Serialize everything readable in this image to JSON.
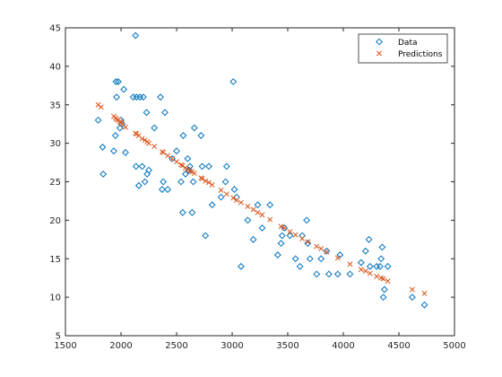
{
  "chart_data": {
    "type": "scatter",
    "xlim": [
      1500,
      5000
    ],
    "ylim": [
      5,
      45
    ],
    "xticks": [
      1500,
      2000,
      2500,
      3000,
      3500,
      4000,
      4500,
      5000
    ],
    "yticks": [
      5,
      10,
      15,
      20,
      25,
      30,
      35,
      40,
      45
    ],
    "grid": false,
    "legend_position": "top-right",
    "series": [
      {
        "name": "Data",
        "marker": "diamond",
        "color": "#0072BD",
        "points": [
          [
            1795,
            33
          ],
          [
            1835,
            29.5
          ],
          [
            1840,
            26
          ],
          [
            1935,
            29
          ],
          [
            1950,
            31
          ],
          [
            1955,
            38
          ],
          [
            1960,
            36
          ],
          [
            1975,
            38
          ],
          [
            1990,
            32
          ],
          [
            2000,
            33
          ],
          [
            2010,
            32.5
          ],
          [
            2025,
            37
          ],
          [
            2040,
            28.8
          ],
          [
            2110,
            36
          ],
          [
            2130,
            44
          ],
          [
            2135,
            27
          ],
          [
            2140,
            36
          ],
          [
            2160,
            24.5
          ],
          [
            2170,
            36
          ],
          [
            2190,
            27
          ],
          [
            2200,
            36
          ],
          [
            2215,
            25
          ],
          [
            2230,
            34
          ],
          [
            2235,
            26
          ],
          [
            2250,
            26.5
          ],
          [
            2300,
            32
          ],
          [
            2355,
            36
          ],
          [
            2370,
            24
          ],
          [
            2380,
            25
          ],
          [
            2395,
            34
          ],
          [
            2420,
            24
          ],
          [
            2460,
            28
          ],
          [
            2500,
            29
          ],
          [
            2540,
            25
          ],
          [
            2555,
            21
          ],
          [
            2560,
            31
          ],
          [
            2580,
            26
          ],
          [
            2600,
            28
          ],
          [
            2610,
            26.5
          ],
          [
            2620,
            27
          ],
          [
            2640,
            21
          ],
          [
            2650,
            25
          ],
          [
            2660,
            32
          ],
          [
            2720,
            31
          ],
          [
            2730,
            27
          ],
          [
            2760,
            18
          ],
          [
            2790,
            27
          ],
          [
            2820,
            22
          ],
          [
            2900,
            23
          ],
          [
            2940,
            25
          ],
          [
            2950,
            27
          ],
          [
            3010,
            38
          ],
          [
            3020,
            24
          ],
          [
            3040,
            23
          ],
          [
            3080,
            14
          ],
          [
            3140,
            20
          ],
          [
            3190,
            17.5
          ],
          [
            3230,
            22
          ],
          [
            3270,
            19
          ],
          [
            3340,
            22
          ],
          [
            3410,
            15.5
          ],
          [
            3440,
            17
          ],
          [
            3450,
            18
          ],
          [
            3470,
            19
          ],
          [
            3520,
            18
          ],
          [
            3570,
            15
          ],
          [
            3610,
            14
          ],
          [
            3630,
            18
          ],
          [
            3670,
            20
          ],
          [
            3680,
            17
          ],
          [
            3700,
            15
          ],
          [
            3760,
            13
          ],
          [
            3800,
            15
          ],
          [
            3850,
            16
          ],
          [
            3870,
            13
          ],
          [
            3950,
            13
          ],
          [
            3970,
            15.5
          ],
          [
            4060,
            13
          ],
          [
            4160,
            14.5
          ],
          [
            4200,
            16
          ],
          [
            4230,
            17.5
          ],
          [
            4240,
            14
          ],
          [
            4300,
            14
          ],
          [
            4330,
            14
          ],
          [
            4340,
            15
          ],
          [
            4350,
            16.5
          ],
          [
            4360,
            10
          ],
          [
            4370,
            11
          ],
          [
            4400,
            14
          ],
          [
            4620,
            10
          ],
          [
            4730,
            9
          ]
        ]
      },
      {
        "name": "Predictions",
        "marker": "x",
        "color": "#D95319",
        "points": [
          [
            1795,
            35
          ],
          [
            1820,
            34.7
          ],
          [
            1935,
            33.5
          ],
          [
            1950,
            33.3
          ],
          [
            1960,
            33.1
          ],
          [
            1975,
            33
          ],
          [
            1990,
            32.8
          ],
          [
            2000,
            32.7
          ],
          [
            2010,
            32.5
          ],
          [
            2040,
            32.1
          ],
          [
            2130,
            31.3
          ],
          [
            2140,
            31.2
          ],
          [
            2160,
            31
          ],
          [
            2190,
            30.6
          ],
          [
            2215,
            30.4
          ],
          [
            2235,
            30.2
          ],
          [
            2250,
            30
          ],
          [
            2300,
            29.6
          ],
          [
            2370,
            28.9
          ],
          [
            2380,
            28.8
          ],
          [
            2420,
            28.4
          ],
          [
            2460,
            28
          ],
          [
            2500,
            27.6
          ],
          [
            2540,
            27.2
          ],
          [
            2555,
            27.1
          ],
          [
            2580,
            26.8
          ],
          [
            2600,
            26.6
          ],
          [
            2620,
            26.4
          ],
          [
            2640,
            26.3
          ],
          [
            2660,
            26.1
          ],
          [
            2720,
            25.5
          ],
          [
            2730,
            25.4
          ],
          [
            2760,
            25.1
          ],
          [
            2790,
            24.9
          ],
          [
            2820,
            24.6
          ],
          [
            2900,
            23.9
          ],
          [
            2950,
            23.4
          ],
          [
            3010,
            22.9
          ],
          [
            3040,
            22.6
          ],
          [
            3080,
            22.3
          ],
          [
            3140,
            21.8
          ],
          [
            3190,
            21.4
          ],
          [
            3230,
            21
          ],
          [
            3270,
            20.7
          ],
          [
            3340,
            20.1
          ],
          [
            3440,
            19.2
          ],
          [
            3470,
            19
          ],
          [
            3520,
            18.5
          ],
          [
            3570,
            18.1
          ],
          [
            3630,
            17.6
          ],
          [
            3680,
            17.2
          ],
          [
            3760,
            16.6
          ],
          [
            3800,
            16.3
          ],
          [
            3850,
            15.9
          ],
          [
            3950,
            15.1
          ],
          [
            4060,
            14.3
          ],
          [
            4160,
            13.6
          ],
          [
            4200,
            13.4
          ],
          [
            4240,
            13.1
          ],
          [
            4300,
            12.7
          ],
          [
            4340,
            12.5
          ],
          [
            4360,
            12.4
          ],
          [
            4400,
            12.1
          ],
          [
            4620,
            11
          ],
          [
            4730,
            10.5
          ]
        ]
      }
    ]
  }
}
